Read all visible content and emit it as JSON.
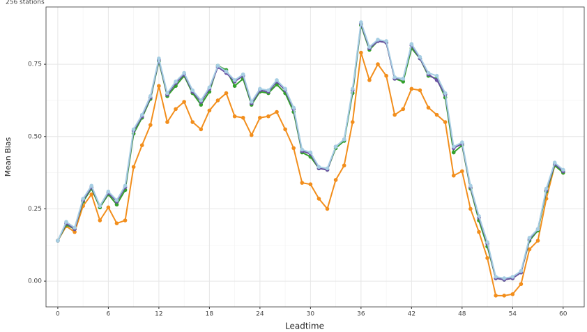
{
  "chart_data": {
    "type": "line",
    "subtitle": "256 stations",
    "x_label": "Leadtime",
    "y_label": "Mean Bias",
    "x": [
      0,
      1,
      2,
      3,
      4,
      5,
      6,
      7,
      8,
      9,
      10,
      11,
      12,
      13,
      14,
      15,
      16,
      17,
      18,
      19,
      20,
      21,
      22,
      23,
      24,
      25,
      26,
      27,
      28,
      29,
      30,
      31,
      32,
      33,
      34,
      35,
      36,
      37,
      38,
      39,
      40,
      41,
      42,
      43,
      44,
      45,
      46,
      47,
      48,
      49,
      50,
      51,
      52,
      53,
      54,
      55,
      56,
      57,
      58,
      59,
      60
    ],
    "series": [
      {
        "color": "#f28e1c",
        "values": [
          0.14,
          0.19,
          0.17,
          0.26,
          0.3,
          0.21,
          0.255,
          0.2,
          0.21,
          0.395,
          0.47,
          0.54,
          0.675,
          0.55,
          0.595,
          0.62,
          0.55,
          0.525,
          0.59,
          0.625,
          0.65,
          0.57,
          0.565,
          0.505,
          0.565,
          0.57,
          0.585,
          0.525,
          0.46,
          0.34,
          0.335,
          0.285,
          0.25,
          0.35,
          0.4,
          0.55,
          0.79,
          0.695,
          0.75,
          0.71,
          0.575,
          0.595,
          0.665,
          0.66,
          0.6,
          0.575,
          0.55,
          0.365,
          0.38,
          0.25,
          0.17,
          0.08,
          -0.05,
          -0.05,
          -0.045,
          -0.01,
          0.11,
          0.14,
          0.285,
          0.4,
          0.375
        ]
      },
      {
        "color": "#33a02c",
        "values": [
          0.14,
          0.195,
          0.18,
          0.275,
          0.32,
          0.255,
          0.3,
          0.265,
          0.315,
          0.51,
          0.565,
          0.63,
          0.76,
          0.64,
          0.675,
          0.71,
          0.65,
          0.61,
          0.655,
          0.745,
          0.73,
          0.675,
          0.7,
          0.61,
          0.655,
          0.65,
          0.68,
          0.65,
          0.585,
          0.445,
          0.43,
          0.39,
          0.385,
          0.46,
          0.485,
          0.65,
          0.885,
          0.8,
          0.83,
          0.825,
          0.7,
          0.69,
          0.805,
          0.77,
          0.71,
          0.7,
          0.635,
          0.445,
          0.47,
          0.32,
          0.21,
          0.12,
          0.01,
          0.005,
          0.01,
          0.03,
          0.14,
          0.175,
          0.31,
          0.4,
          0.375
        ]
      },
      {
        "color": "#6a51a3",
        "values": [
          0.14,
          0.2,
          0.18,
          0.28,
          0.325,
          0.26,
          0.305,
          0.275,
          0.325,
          0.52,
          0.57,
          0.635,
          0.765,
          0.645,
          0.685,
          0.715,
          0.655,
          0.62,
          0.665,
          0.74,
          0.72,
          0.69,
          0.71,
          0.615,
          0.66,
          0.655,
          0.69,
          0.66,
          0.595,
          0.45,
          0.44,
          0.39,
          0.385,
          0.465,
          0.49,
          0.66,
          0.89,
          0.805,
          0.83,
          0.825,
          0.7,
          0.7,
          0.815,
          0.77,
          0.715,
          0.695,
          0.645,
          0.46,
          0.475,
          0.325,
          0.22,
          0.13,
          0.01,
          0.005,
          0.01,
          0.03,
          0.145,
          0.18,
          0.315,
          0.405,
          0.38
        ]
      },
      {
        "color": "#a6cee3",
        "values": [
          0.14,
          0.205,
          0.185,
          0.285,
          0.33,
          0.26,
          0.31,
          0.28,
          0.33,
          0.525,
          0.575,
          0.64,
          0.77,
          0.65,
          0.69,
          0.72,
          0.66,
          0.625,
          0.67,
          0.745,
          0.725,
          0.695,
          0.715,
          0.62,
          0.665,
          0.66,
          0.695,
          0.665,
          0.6,
          0.455,
          0.445,
          0.395,
          0.39,
          0.465,
          0.49,
          0.665,
          0.895,
          0.81,
          0.835,
          0.83,
          0.705,
          0.7,
          0.82,
          0.775,
          0.72,
          0.71,
          0.65,
          0.465,
          0.48,
          0.33,
          0.225,
          0.135,
          0.015,
          0.01,
          0.015,
          0.035,
          0.15,
          0.18,
          0.32,
          0.41,
          0.385
        ]
      }
    ],
    "xlim": [
      -1.4,
      62.5
    ],
    "ylim": [
      -0.089,
      0.948
    ],
    "xticks": [
      0,
      6,
      12,
      18,
      24,
      30,
      36,
      42,
      48,
      54,
      60
    ],
    "yticks": [
      {
        "value": 0,
        "label": "0.00"
      },
      {
        "value": 0.25,
        "label": "0.25"
      },
      {
        "value": 0.5,
        "label": "0.50"
      },
      {
        "value": 0.75,
        "label": "0.75"
      }
    ],
    "grid": true
  }
}
